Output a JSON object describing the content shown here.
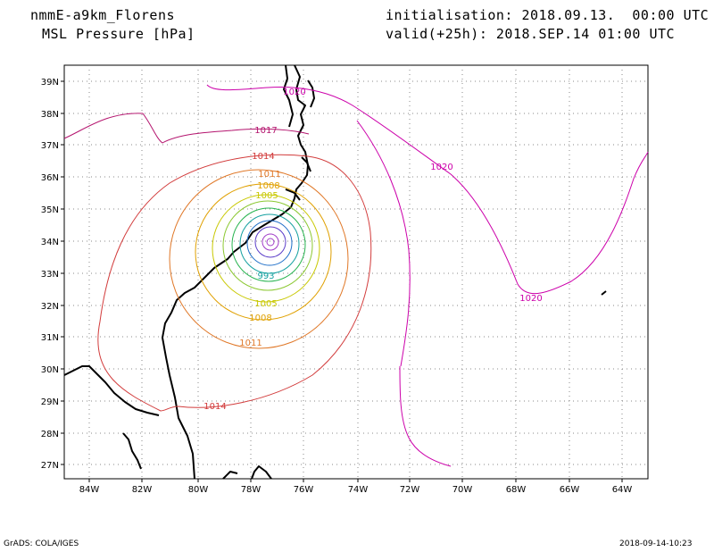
{
  "header": {
    "model": "nmmE-a9km_Florens",
    "variable": "MSL Pressure [hPa]",
    "init": "initialisation: 2018.09.13.  00:00 UTC",
    "valid": "valid(+25h): 2018.SEP.14 01:00 UTC"
  },
  "footer": {
    "left": "GrADS: COLA/IGES",
    "right": "2018-09-14-10:23"
  },
  "map": {
    "lat_labels": [
      "39N",
      "38N",
      "37N",
      "36N",
      "35N",
      "34N",
      "33N",
      "32N",
      "31N",
      "30N",
      "29N",
      "28N",
      "27N"
    ],
    "lon_labels": [
      "84W",
      "82W",
      "80W",
      "78W",
      "76W",
      "74W",
      "72W",
      "70W",
      "68W",
      "66W",
      "64W"
    ],
    "contour_labels": [
      "1020",
      "1017",
      "1014",
      "1011",
      "1008",
      "1005",
      "993",
      "1020",
      "1020",
      "1014",
      "1011",
      "1008",
      "1005"
    ],
    "colors": {
      "c1020": "#cc00aa",
      "c1017": "#b4146e",
      "c1014": "#d23c3c",
      "c1011": "#e07828",
      "c1008": "#e0a000",
      "c1005": "#c8c800",
      "c1002": "#8cc832",
      "c999": "#28b450",
      "c996": "#14a0a0",
      "c993": "#1e6ec8",
      "c990": "#5a3cc8",
      "c987": "#a03cc8"
    }
  }
}
